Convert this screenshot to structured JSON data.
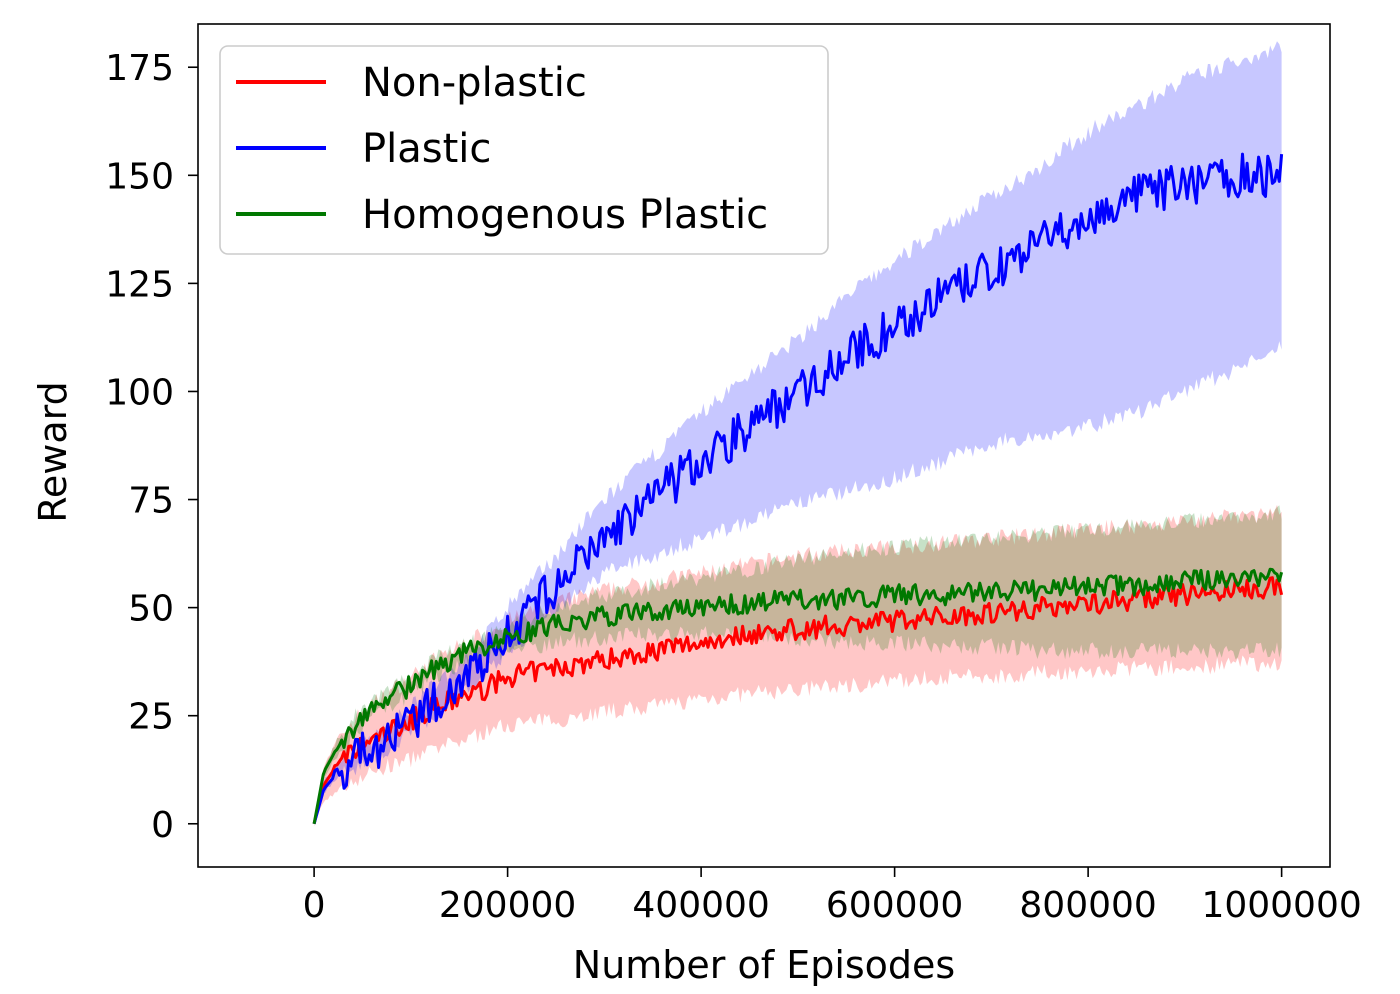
{
  "chart_data": {
    "type": "line",
    "title": "",
    "xlabel": "Number of Episodes",
    "ylabel": "Reward",
    "xlim": [
      -120000,
      1050000
    ],
    "ylim": [
      -10,
      185
    ],
    "xticks": [
      0,
      200000,
      400000,
      600000,
      800000,
      1000000
    ],
    "xtick_labels": [
      "0",
      "200000",
      "400000",
      "600000",
      "800000",
      "1000000"
    ],
    "yticks": [
      0,
      25,
      50,
      75,
      100,
      125,
      150,
      175
    ],
    "ytick_labels": [
      "0",
      "25",
      "50",
      "75",
      "100",
      "125",
      "150",
      "175"
    ],
    "grid": false,
    "legend_position": "upper-left",
    "x": [
      0,
      10000,
      25000,
      50000,
      75000,
      100000,
      125000,
      150000,
      175000,
      200000,
      250000,
      300000,
      350000,
      400000,
      450000,
      500000,
      550000,
      600000,
      650000,
      700000,
      750000,
      800000,
      850000,
      900000,
      950000,
      1000000
    ],
    "series": [
      {
        "name": "Non-plastic",
        "color": "#ff0000",
        "values": [
          0,
          9,
          14,
          18,
          21,
          24,
          27,
          29,
          31,
          34,
          36,
          38,
          40,
          42,
          44,
          45,
          46,
          47,
          48,
          49,
          50,
          51,
          52,
          53,
          54,
          55
        ],
        "lower": [
          0,
          5,
          8,
          11,
          13,
          15,
          17,
          19,
          21,
          23,
          24,
          26,
          27,
          29,
          30,
          31,
          32,
          33,
          34,
          34,
          35,
          35,
          36,
          36,
          37,
          37
        ],
        "upper": [
          0,
          13,
          20,
          26,
          30,
          34,
          38,
          41,
          44,
          47,
          51,
          54,
          56,
          58,
          60,
          62,
          63,
          64,
          65,
          66,
          67,
          68,
          69,
          70,
          71,
          72
        ]
      },
      {
        "name": "Plastic",
        "color": "#0000ff",
        "values": [
          0,
          8,
          12,
          16,
          19,
          23,
          28,
          33,
          38,
          44,
          55,
          66,
          75,
          84,
          92,
          100,
          108,
          115,
          122,
          128,
          134,
          140,
          145,
          148,
          150,
          150
        ],
        "lower": [
          0,
          7,
          11,
          14,
          17,
          21,
          25,
          30,
          34,
          40,
          49,
          58,
          62,
          66,
          70,
          74,
          77,
          80,
          84,
          88,
          90,
          92,
          95,
          100,
          105,
          110
        ],
        "upper": [
          0,
          10,
          14,
          18,
          22,
          27,
          32,
          37,
          43,
          50,
          62,
          75,
          85,
          95,
          104,
          112,
          122,
          130,
          138,
          145,
          152,
          160,
          166,
          172,
          176,
          180
        ]
      },
      {
        "name": "Homogenous Plastic",
        "color": "#007800",
        "values": [
          0,
          12,
          18,
          25,
          29,
          32,
          36,
          39,
          41,
          43,
          46,
          48,
          49,
          50,
          51,
          52,
          52,
          53,
          53,
          54,
          54,
          55,
          55,
          56,
          57,
          57
        ],
        "lower": [
          0,
          11,
          16,
          23,
          27,
          30,
          34,
          37,
          39,
          40,
          42,
          43,
          44,
          44,
          44,
          43,
          42,
          42,
          41,
          41,
          40,
          40,
          40,
          40,
          40,
          40
        ],
        "upper": [
          0,
          13,
          20,
          27,
          31,
          34,
          38,
          41,
          43,
          46,
          50,
          53,
          55,
          57,
          59,
          61,
          63,
          64,
          65,
          66,
          67,
          68,
          69,
          70,
          71,
          72
        ]
      }
    ]
  }
}
